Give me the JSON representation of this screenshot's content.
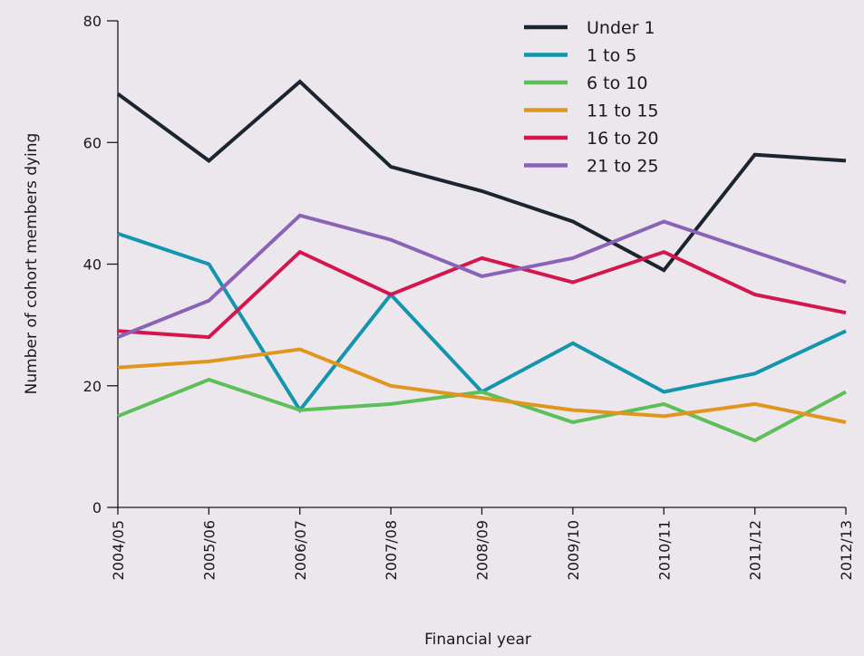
{
  "chart_data": {
    "type": "line",
    "title": "",
    "xlabel": "Financial year",
    "ylabel": "Number of cohort members dying",
    "x": [
      "2004/05",
      "2005/06",
      "2006/07",
      "2007/08",
      "2008/09",
      "2009/10",
      "2010/11",
      "2011/12",
      "2012/13"
    ],
    "ylim": [
      0,
      80
    ],
    "yticks": [
      0,
      20,
      40,
      60,
      80
    ],
    "grid": false,
    "legend_position": "top-right",
    "series": [
      {
        "name": "Under 1",
        "color": "#1b2530",
        "values": [
          68,
          57,
          70,
          56,
          52,
          47,
          39,
          58,
          57
        ]
      },
      {
        "name": "1 to 5",
        "color": "#1295ad",
        "values": [
          45,
          40,
          16,
          35,
          19,
          27,
          19,
          22,
          29
        ]
      },
      {
        "name": "6 to 10",
        "color": "#5cbf5a",
        "values": [
          15,
          21,
          16,
          17,
          19,
          14,
          17,
          11,
          19
        ]
      },
      {
        "name": "11 to 15",
        "color": "#e0961e",
        "values": [
          23,
          24,
          26,
          20,
          18,
          16,
          15,
          17,
          14
        ]
      },
      {
        "name": "16 to 20",
        "color": "#d4164e",
        "values": [
          29,
          28,
          42,
          35,
          41,
          37,
          42,
          35,
          32
        ]
      },
      {
        "name": "21 to 25",
        "color": "#8a62b6",
        "values": [
          28,
          34,
          48,
          44,
          38,
          41,
          47,
          42,
          37
        ]
      }
    ]
  }
}
